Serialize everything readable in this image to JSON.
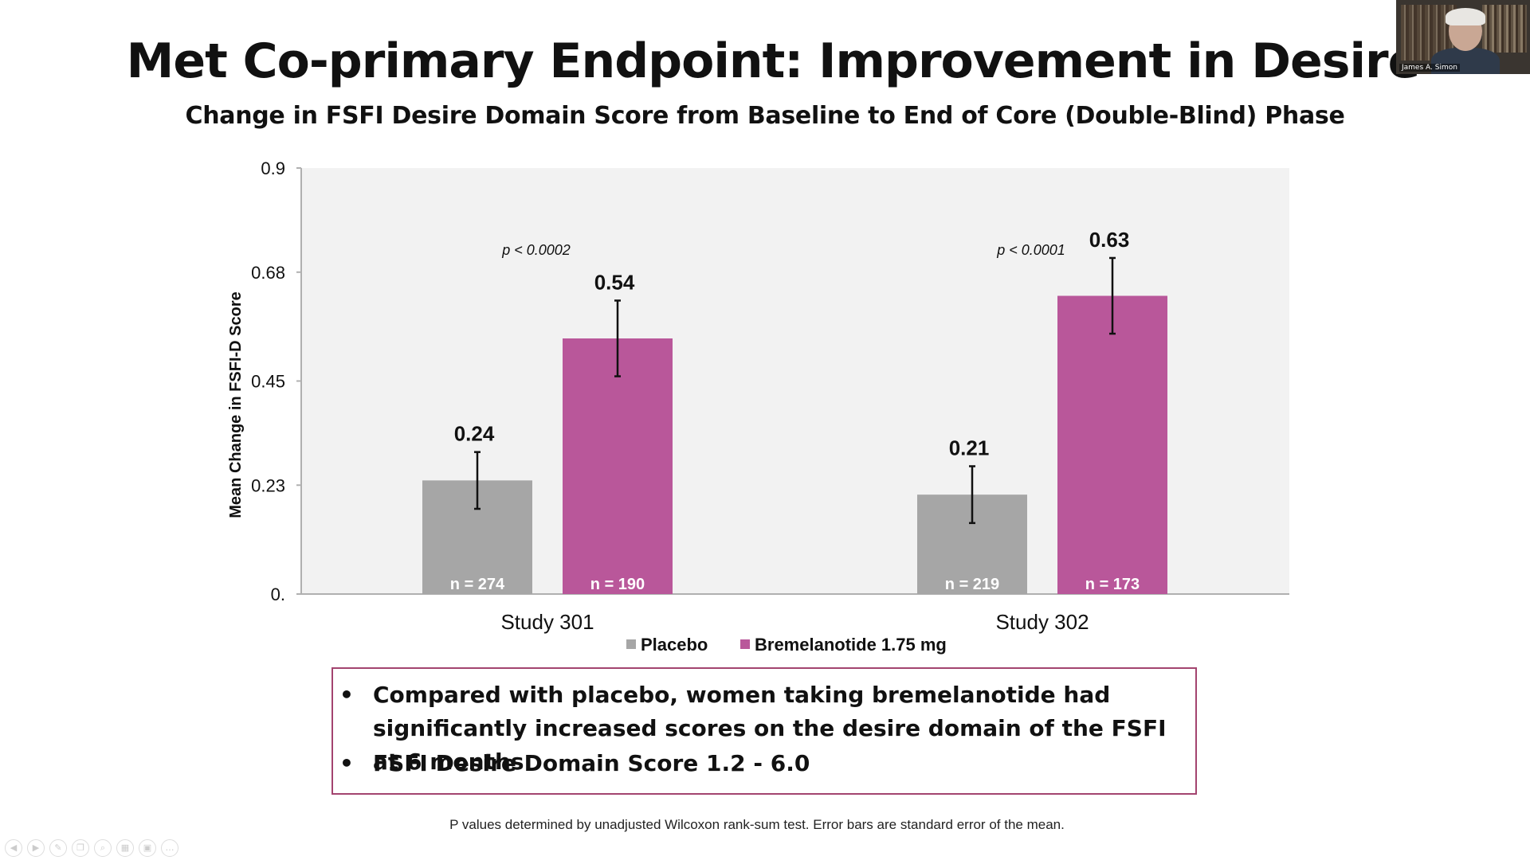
{
  "slide": {
    "title": "Met Co-primary Endpoint: Improvement in Desire",
    "subtitle": "Change in FSFI Desire Domain Score from Baseline to End of Core (Double-Blind) Phase",
    "bullets": [
      "Compared with placebo, women taking bremelanotide had significantly increased scores on the desire domain of the FSFI at 6 months",
      "FSFI Desire Domain Score 1.2 - 6.0"
    ],
    "bullet_marker": "•",
    "footnote": "P values determined by unadjusted Wilcoxon rank-sum test. Error bars are standard error of the mean."
  },
  "webcam": {
    "name": "James A. Simon"
  },
  "toolbar": {
    "icons": [
      "play-icon",
      "pen-icon",
      "highlighter-icon",
      "copy-icon",
      "zoom-icon",
      "grid-icon",
      "camera-icon",
      "more-icon"
    ],
    "glyphs": [
      "◀",
      "▶",
      "✎",
      "❐",
      "⌕",
      "▦",
      "▣",
      "…"
    ]
  },
  "chart_data": {
    "type": "bar",
    "categories": [
      "Study 301",
      "Study 302"
    ],
    "ylabel": "Mean Change in FSFI-D Score",
    "ylim": [
      0,
      0.9
    ],
    "yticks": [
      0,
      0.23,
      0.45,
      0.68,
      0.9
    ],
    "yticklabels": [
      "0.",
      "0.23",
      "0.45",
      "0.68",
      "0.9"
    ],
    "grid": false,
    "legend_position": "bottom",
    "series": [
      {
        "name": "Placebo",
        "color": "#a6a6a6",
        "values": [
          0.24,
          0.21
        ],
        "value_labels": [
          "0.24",
          "0.21"
        ],
        "errors": [
          0.06,
          0.06
        ],
        "n_labels": [
          "n = 274",
          "n = 219"
        ]
      },
      {
        "name": "Bremelanotide 1.75 mg",
        "color": "#b9579a",
        "values": [
          0.54,
          0.63
        ],
        "value_labels": [
          "0.54",
          "0.63"
        ],
        "errors": [
          0.08,
          0.08
        ],
        "n_labels": [
          "n = 190",
          "n = 173"
        ]
      }
    ],
    "annotations": [
      "p < 0.0002",
      "p < 0.0001"
    ],
    "colors": {
      "plot_bg": "#f2f2f2",
      "axis": "#b0b0b0",
      "error_bar": "#111111"
    }
  }
}
